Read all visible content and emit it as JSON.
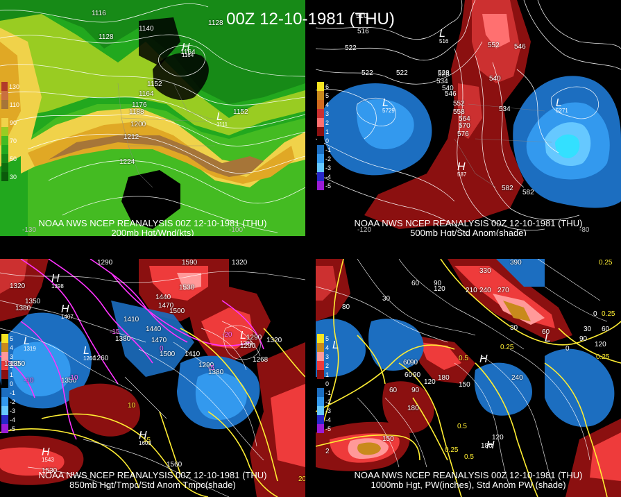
{
  "header": {
    "title": "00Z 12-10-1981 (THU)"
  },
  "panels": [
    {
      "id": "p200",
      "caption_line1": "NOAA NWS NCEP REANALYSIS 00Z 12-10-1981 (THU)",
      "caption_line2": "200mb Hgt/Wnd(kts)",
      "legend": [
        {
          "label": "130",
          "color": "#b23a2a"
        },
        {
          "label": "",
          "color": "#c97040"
        },
        {
          "label": "110",
          "color": "#a67538"
        },
        {
          "label": "",
          "color": "#e0a825"
        },
        {
          "label": "90",
          "color": "#f0d24a"
        },
        {
          "label": "",
          "color": "#99cc22"
        },
        {
          "label": "70",
          "color": "#44bb22"
        },
        {
          "label": "",
          "color": "#22a81e"
        },
        {
          "label": "50",
          "color": "#178a17"
        },
        {
          "label": "",
          "color": "#0e6e0e"
        },
        {
          "label": "30",
          "color": "#0b5a0b"
        }
      ],
      "contour_labels": [
        "1116",
        "1128",
        "1140",
        "1128",
        "1164",
        "1152",
        "1164",
        "1176",
        "1188",
        "1200",
        "1212",
        "1224",
        "1152"
      ],
      "centers": [
        {
          "letter": "H",
          "value": "1164"
        },
        {
          "letter": "L",
          "value": "1111"
        }
      ],
      "lon_labels": [
        "-130",
        "-100"
      ]
    },
    {
      "id": "p500",
      "caption_line1": "NOAA NWS NCEP REANALYSIS 00Z 12-10-1981 (THU)",
      "caption_line2": "500mb Hgt/Std Anom(shade)",
      "legend": [
        {
          "label": "6",
          "color": "#f7e321"
        },
        {
          "label": "5",
          "color": "#c98a1c"
        },
        {
          "label": "4",
          "color": "#d2691e"
        },
        {
          "label": "3",
          "color": "#cc3030"
        },
        {
          "label": "2",
          "color": "#ff7070"
        },
        {
          "label": "1",
          "color": "#8b1010"
        },
        {
          "label": "0",
          "color": "#000000"
        },
        {
          "label": "-1",
          "color": "#1c6ec0"
        },
        {
          "label": "-2",
          "color": "#3399ee"
        },
        {
          "label": "-3",
          "color": "#66c8ff"
        },
        {
          "label": "-4",
          "color": "#2828c8"
        },
        {
          "label": "-5",
          "color": "#9a1cd6"
        }
      ],
      "contour_labels": [
        "510",
        "516",
        "522",
        "522",
        "528",
        "534",
        "540",
        "546",
        "552",
        "558",
        "564",
        "570",
        "576",
        "582",
        "522",
        "528",
        "534",
        "540",
        "552",
        "546",
        "582"
      ],
      "centers": [
        {
          "letter": "L",
          "value": "5729"
        },
        {
          "letter": "L",
          "value": "516"
        },
        {
          "letter": "H",
          "value": "587"
        },
        {
          "letter": "L",
          "value": "5271"
        }
      ],
      "lon_labels": [
        "-120",
        "-80"
      ]
    },
    {
      "id": "p850",
      "caption_line1": "NOAA NWS NCEP REANALYSIS 00Z 12-10-1981 (THU)",
      "caption_line2": "850mb Hgt/Tmpc/Std Anom Tmpc(shade)",
      "legend": [
        {
          "label": "5",
          "color": "#f7e321"
        },
        {
          "label": "4",
          "color": "#c98a1c"
        },
        {
          "label": "3",
          "color": "#ff9999"
        },
        {
          "label": "2",
          "color": "#ee3b3b"
        },
        {
          "label": "1",
          "color": "#8b1010"
        },
        {
          "label": "0",
          "color": "#000000"
        },
        {
          "label": "-1",
          "color": "#1c6ec0"
        },
        {
          "label": "-2",
          "color": "#3399ee"
        },
        {
          "label": "-3",
          "color": "#66c8ff"
        },
        {
          "label": "-4",
          "color": "#2828c8"
        },
        {
          "label": "-5",
          "color": "#9a1cd6"
        }
      ],
      "contour_labels": [
        "1290",
        "1590",
        "1320",
        "1320",
        "1350",
        "1380",
        "1530",
        "1440",
        "1470",
        "1500",
        "1410",
        "1440",
        "1470",
        "1380",
        "1500",
        "1410",
        "1290",
        "1268",
        "1320",
        "1290",
        "1350",
        "1260",
        "1350",
        "1350",
        "1380",
        "1290",
        "1560",
        "1530"
      ],
      "temp_labels": [
        "-10",
        "-10",
        "-5",
        "-20",
        "10",
        "15",
        "20",
        "-15",
        "0"
      ],
      "centers": [
        {
          "letter": "H",
          "value": "1398"
        },
        {
          "letter": "H",
          "value": "1407"
        },
        {
          "letter": "L",
          "value": "1319"
        },
        {
          "letter": "L",
          "value": "1260"
        },
        {
          "letter": "H",
          "value": "1603"
        },
        {
          "letter": "H",
          "value": "1543"
        },
        {
          "letter": "L",
          "value": "1299"
        }
      ]
    },
    {
      "id": "p1000",
      "caption_line1": "NOAA NWS NCEP REANALYSIS 00Z 12-10-1981 (THU)",
      "caption_line2": "1000mb Hgt, PW(inches), Std Anom PW (shade)",
      "legend": [
        {
          "label": "5",
          "color": "#f7e321"
        },
        {
          "label": "4",
          "color": "#c98a1c"
        },
        {
          "label": "3",
          "color": "#ff9999"
        },
        {
          "label": "2",
          "color": "#ee3b3b"
        },
        {
          "label": "1",
          "color": "#8b1010"
        },
        {
          "label": "0",
          "color": "#000000"
        },
        {
          "label": "-1",
          "color": "#1c6ec0"
        },
        {
          "label": "-2",
          "color": "#3399ee"
        },
        {
          "label": "-3",
          "color": "#66c8ff"
        },
        {
          "label": "-4",
          "color": "#2828c8"
        },
        {
          "label": "-5",
          "color": "#9a1cd6"
        }
      ],
      "contour_labels": [
        "390",
        "330",
        "0.25",
        "60",
        "90",
        "120",
        "210",
        "240",
        "270",
        "0.25",
        "80",
        "30",
        "60",
        "90",
        "0.5",
        "60",
        "90",
        "120",
        "180",
        "150",
        "240",
        "60",
        "90",
        "180",
        "0.5",
        "150",
        "120",
        "180",
        "0.25",
        "0.5",
        "2",
        "30",
        "60",
        "90",
        "120",
        "30",
        "60",
        "0",
        "0.25",
        "0",
        "0.25"
      ],
      "centers": [
        {
          "letter": "L",
          "value": ""
        },
        {
          "letter": "H",
          "value": ""
        },
        {
          "letter": "H",
          "value": ""
        },
        {
          "letter": "L",
          "value": ""
        }
      ]
    }
  ]
}
